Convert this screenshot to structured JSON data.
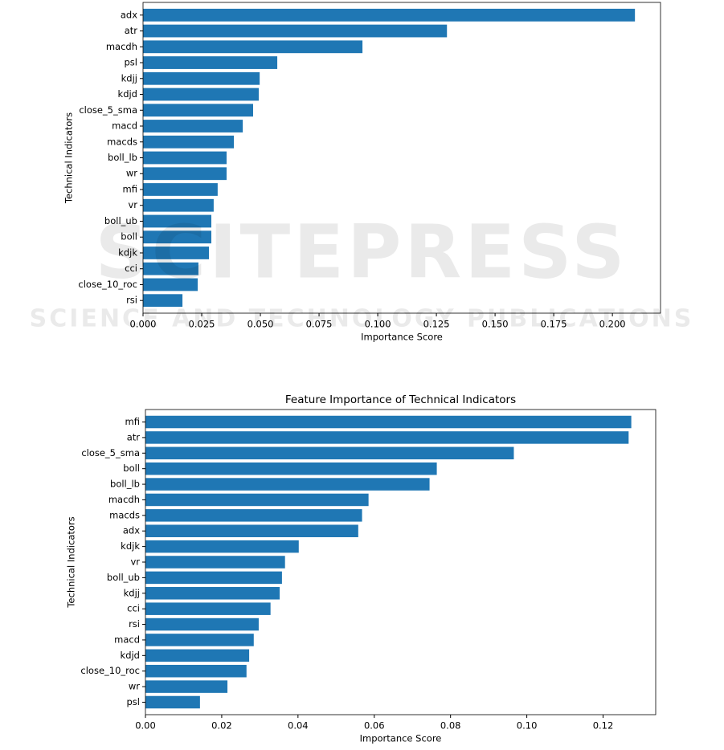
{
  "chart_data": [
    {
      "type": "bar",
      "orientation": "horizontal",
      "color": "#1f77b4",
      "xlabel": "Importance Score",
      "ylabel": "Technical Indicators",
      "categories": [
        "adx",
        "atr",
        "macdh",
        "psl",
        "kdjj",
        "kdjd",
        "close_5_sma",
        "macd",
        "macds",
        "boll_lb",
        "wr",
        "mfi",
        "vr",
        "boll_ub",
        "boll",
        "kdjk",
        "cci",
        "close_10_roc",
        "rsi"
      ],
      "values": [
        0.2096,
        0.1295,
        0.0935,
        0.0572,
        0.0497,
        0.0493,
        0.0469,
        0.0425,
        0.0387,
        0.0356,
        0.0356,
        0.0318,
        0.0301,
        0.0291,
        0.0291,
        0.0281,
        0.0236,
        0.0233,
        0.0168
      ],
      "xlim": [
        0,
        0.2205
      ],
      "xticks": [
        {
          "value": 0,
          "label": "0.000"
        },
        {
          "value": 0.025,
          "label": "0.025"
        },
        {
          "value": 0.05,
          "label": "0.050"
        },
        {
          "value": 0.075,
          "label": "0.075"
        },
        {
          "value": 0.1,
          "label": "0.100"
        },
        {
          "value": 0.125,
          "label": "0.125"
        },
        {
          "value": 0.15,
          "label": "0.150"
        },
        {
          "value": 0.175,
          "label": "0.175"
        },
        {
          "value": 0.2,
          "label": "0.200"
        }
      ]
    },
    {
      "type": "bar",
      "orientation": "horizontal",
      "color": "#1f77b4",
      "title": "Feature Importance of Technical Indicators",
      "xlabel": "Importance Score",
      "ylabel": "Technical Indicators",
      "categories": [
        "mfi",
        "atr",
        "close_5_sma",
        "boll",
        "boll_lb",
        "macdh",
        "macds",
        "adx",
        "kdjk",
        "vr",
        "boll_ub",
        "kdjj",
        "cci",
        "rsi",
        "macd",
        "kdjd",
        "close_10_roc",
        "wr",
        "psl"
      ],
      "values": [
        0.1274,
        0.1267,
        0.0966,
        0.0764,
        0.0745,
        0.0585,
        0.0568,
        0.0558,
        0.0402,
        0.0366,
        0.0358,
        0.0352,
        0.0328,
        0.0297,
        0.0284,
        0.0272,
        0.0265,
        0.0215,
        0.0143
      ],
      "xlim": [
        0,
        0.1338
      ],
      "xticks": [
        {
          "value": 0,
          "label": "0.00"
        },
        {
          "value": 0.02,
          "label": "0.02"
        },
        {
          "value": 0.04,
          "label": "0.04"
        },
        {
          "value": 0.06,
          "label": "0.06"
        },
        {
          "value": 0.08,
          "label": "0.08"
        },
        {
          "value": 0.1,
          "label": "0.10"
        },
        {
          "value": 0.12,
          "label": "0.12"
        }
      ]
    }
  ],
  "watermark": {
    "main": "SCITEPRESS",
    "sub": "SCIENCE AND TECHNOLOGY PUBLICATIONS"
  }
}
